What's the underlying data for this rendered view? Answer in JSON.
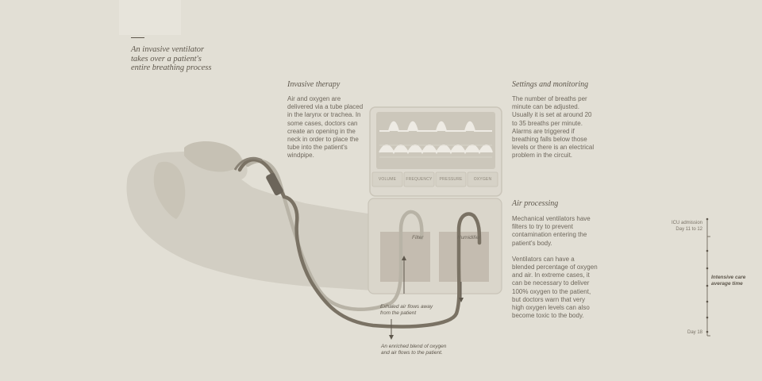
{
  "intro": {
    "title": "An invasive ventilator takes over a patient's entire breathing process"
  },
  "invasive": {
    "heading": "Invasive therapy",
    "body": "Air and oxygen are delivered via a tube placed in the larynx or trachea. In some cases, doctors can create an opening in the neck in order to place the tube into the patient's windpipe."
  },
  "settings": {
    "heading": "Settings and monitoring",
    "body": "The number of breaths per minute can be adjusted. Usually it is set at around 20 to 35 breaths per minute. Alarms are triggered if breathing falls below those levels or there is an electrical problem in the circuit."
  },
  "air": {
    "heading": "Air processing",
    "body1": "Mechanical ventilators have filters to try to prevent contamination entering the patient's body.",
    "body2": "Ventilators can have a blended percentage of oxygen and air. In extreme cases, it can be necessary to deliver 100% oxygen to the patient, but doctors warn that very high oxygen levels can also become toxic to the body."
  },
  "monitor": {
    "buttons": [
      "VOLUME",
      "FREQUENCY",
      "PRESSURE",
      "OXYGEN"
    ]
  },
  "boxes": {
    "filter": "Filter",
    "humidifier": "Humidifier"
  },
  "notes": {
    "exhaled": "Exhaled air flows away from the patient",
    "enriched": "An enriched blend of oxygen and air flows to the patient."
  },
  "timeline": {
    "admission": "ICU admission",
    "day_range": "Day 11 to 12",
    "middle": "Intensive care average time",
    "end": "Day 18"
  },
  "colors": {
    "background": "#e2dfd5",
    "text": "#6f685d",
    "tube_dark": "#7a7264",
    "tube_light": "#b8b3a6",
    "silhouette": "#cfcbbf"
  }
}
